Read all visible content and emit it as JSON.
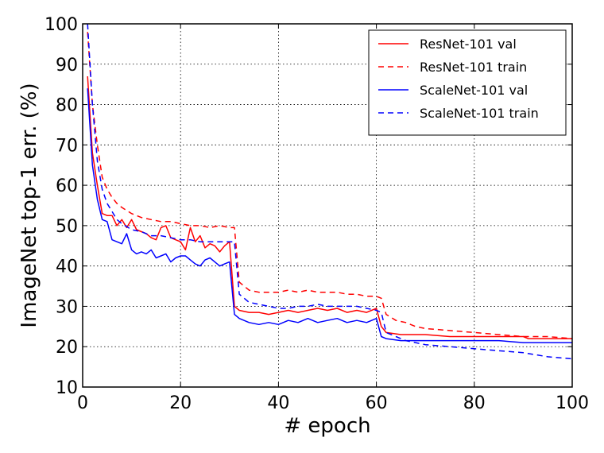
{
  "chart_data": {
    "type": "line",
    "title": "",
    "xlabel": "# epoch",
    "ylabel": "ImageNet top-1 err. (%)",
    "xlim": [
      0,
      100
    ],
    "ylim": [
      10,
      100
    ],
    "xticks": [
      0,
      20,
      40,
      60,
      80,
      100
    ],
    "yticks": [
      10,
      20,
      30,
      40,
      50,
      60,
      70,
      80,
      90,
      100
    ],
    "grid": true,
    "legend_position": "top-right",
    "series": [
      {
        "name": "ResNet-101 val",
        "color": "#ff0000",
        "style": "solid",
        "x": [
          1,
          2,
          3,
          4,
          5,
          6,
          7,
          8,
          9,
          10,
          11,
          12,
          13,
          14,
          15,
          16,
          17,
          18,
          19,
          20,
          21,
          22,
          23,
          24,
          25,
          26,
          27,
          28,
          29,
          30,
          31,
          32,
          34,
          36,
          38,
          40,
          42,
          44,
          46,
          48,
          50,
          52,
          54,
          56,
          58,
          60,
          61,
          62,
          65,
          70,
          75,
          80,
          85,
          90,
          91,
          95,
          100
        ],
        "y": [
          87,
          68,
          60,
          53,
          52.5,
          52.5,
          50,
          51.5,
          49.5,
          51.5,
          49,
          48.5,
          48,
          47,
          46.5,
          49.5,
          50,
          47,
          46.5,
          46,
          44,
          49.5,
          46,
          47.5,
          44.5,
          45.5,
          45,
          43.5,
          45,
          46,
          30,
          29,
          28.5,
          28.5,
          28,
          28.5,
          29,
          28.5,
          29,
          29.5,
          29,
          29.5,
          28.5,
          29,
          28.5,
          29.5,
          25,
          23.5,
          23,
          23,
          22.5,
          22.5,
          22.5,
          22.5,
          22,
          22,
          22
        ]
      },
      {
        "name": "ResNet-101 train",
        "color": "#ff0000",
        "style": "dashed",
        "x": [
          1,
          2,
          3,
          4,
          5,
          6,
          7,
          8,
          10,
          12,
          14,
          16,
          18,
          20,
          22,
          24,
          26,
          28,
          30,
          31,
          32,
          34,
          36,
          38,
          40,
          42,
          44,
          46,
          48,
          50,
          52,
          54,
          56,
          58,
          60,
          61,
          62,
          64,
          66,
          68,
          70,
          75,
          80,
          85,
          90,
          95,
          100
        ],
        "y": [
          98,
          80,
          70,
          62,
          59,
          57,
          55.5,
          54.5,
          53,
          52,
          51.5,
          51,
          51,
          50.5,
          50,
          50,
          49.5,
          50,
          49.5,
          49.5,
          36,
          34,
          33.5,
          33.5,
          33.5,
          34,
          33.5,
          34,
          33.5,
          33.5,
          33.5,
          33,
          33,
          32.5,
          32.5,
          32,
          28,
          26.5,
          26,
          25,
          24.5,
          24,
          23.5,
          23,
          22.5,
          22.5,
          22
        ]
      },
      {
        "name": "ScaleNet-101 val",
        "color": "#0000ff",
        "style": "solid",
        "x": [
          1,
          2,
          3,
          4,
          5,
          6,
          7,
          8,
          9,
          10,
          11,
          12,
          13,
          14,
          15,
          16,
          17,
          18,
          19,
          20,
          21,
          22,
          23,
          24,
          25,
          26,
          27,
          28,
          29,
          30,
          31,
          32,
          34,
          36,
          38,
          40,
          42,
          44,
          46,
          48,
          50,
          52,
          54,
          56,
          58,
          60,
          61,
          62,
          65,
          70,
          75,
          80,
          85,
          90,
          95,
          100
        ],
        "y": [
          84,
          65,
          56.5,
          51.5,
          51,
          46.5,
          46,
          45.5,
          48,
          44,
          43,
          43.5,
          43,
          44,
          42,
          42.5,
          43,
          41,
          42,
          42.5,
          42.5,
          41.5,
          40.5,
          40,
          41.5,
          42,
          41,
          40,
          40.5,
          41,
          28,
          27,
          26,
          25.5,
          26,
          25.5,
          26.5,
          26,
          27,
          26,
          26.5,
          27,
          26,
          26.5,
          26,
          27,
          22.5,
          22,
          21.5,
          21.5,
          21.5,
          21.5,
          21.5,
          21,
          21,
          21
        ]
      },
      {
        "name": "ScaleNet-101 train",
        "color": "#0000ff",
        "style": "dashed",
        "x": [
          1,
          2,
          3,
          4,
          5,
          6,
          7,
          8,
          10,
          12,
          14,
          16,
          18,
          20,
          22,
          24,
          26,
          28,
          30,
          31,
          32,
          34,
          36,
          38,
          40,
          42,
          44,
          46,
          48,
          50,
          52,
          54,
          56,
          58,
          60,
          61,
          62,
          64,
          66,
          68,
          70,
          75,
          80,
          85,
          90,
          95,
          100
        ],
        "y": [
          100,
          80,
          66,
          59,
          55.5,
          53.5,
          51.5,
          50.5,
          49,
          48.5,
          47.5,
          47.5,
          47,
          46.5,
          46.5,
          46,
          46,
          46,
          46,
          46,
          33,
          31,
          30.5,
          30,
          29.5,
          29.5,
          30,
          30,
          30.5,
          30,
          30,
          30,
          30,
          29.5,
          29,
          28.5,
          23.5,
          22.5,
          21.5,
          21,
          20.5,
          20,
          19.5,
          19,
          18.5,
          17.5,
          17
        ]
      }
    ]
  }
}
